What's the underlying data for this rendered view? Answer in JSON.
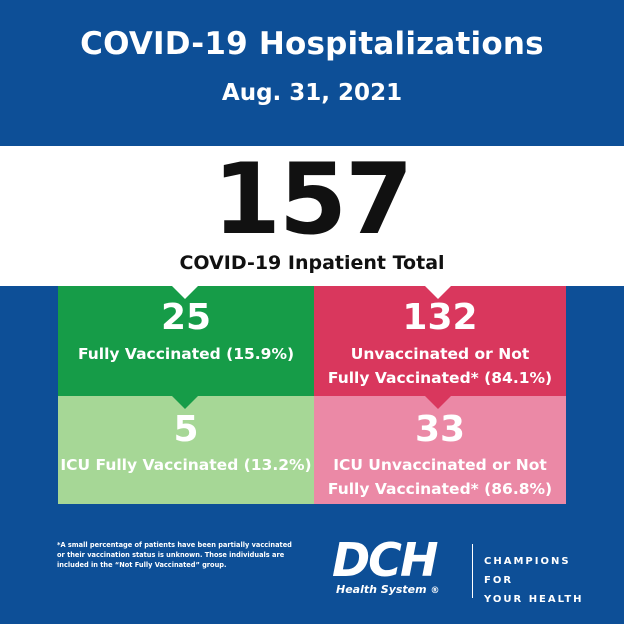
{
  "header": {
    "title": "COVID-19 Hospitalizations",
    "date": "Aug. 31, 2021"
  },
  "total": {
    "value": "157",
    "label": "COVID-19 Inpatient Total"
  },
  "tiles": [
    {
      "value": "25",
      "label_lines": [
        "Fully Vaccinated (15.9%)"
      ],
      "color": "#169c48"
    },
    {
      "value": "132",
      "label_lines": [
        "Unvaccinated or Not",
        "Fully Vaccinated* (84.1%)"
      ],
      "color": "#d9375d"
    },
    {
      "value": "5",
      "label_lines": [
        "ICU Fully Vaccinated (13.2%)"
      ],
      "color": "#a6d796"
    },
    {
      "value": "33",
      "label_lines": [
        "ICU Unvaccinated or Not",
        "Fully Vaccinated* (86.8%)"
      ],
      "color": "#eb89a6"
    }
  ],
  "footnote": {
    "lines": [
      "*A small percentage of patients have been partially vaccinated",
      "or their vaccination status is unknown. Those individuals are",
      "included in the “Not Fully Vaccinated” group."
    ]
  },
  "branding": {
    "logo_text": "DCH",
    "logo_subtext": "Health System",
    "registered_mark": "®",
    "tagline_lines": [
      "CHAMPIONS FOR",
      "YOUR HEALTH"
    ]
  },
  "colors": {
    "background": "#0d4f97",
    "band": "#ffffff"
  }
}
